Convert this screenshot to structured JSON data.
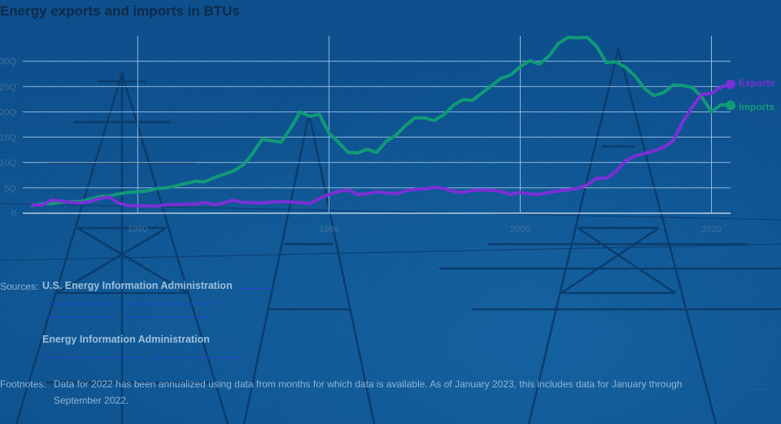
{
  "page": {
    "title": "Energy exports and imports in BTUs",
    "sources_label": "Sources:",
    "sources": [
      {
        "name": "U.S. Energy Information Administration"
      },
      {
        "name": "Energy Information Administration"
      }
    ],
    "footnotes_label": "Footnotes:",
    "footnote": "Data for 2022 has been annualized using data from months for which data is available. As of January 2023, this includes data for January through September 2022."
  },
  "colors": {
    "exports": "#7a30d6",
    "imports": "#109a78",
    "grid": "#9fc3e4",
    "background": "#0b4e8c"
  },
  "chart_data": {
    "type": "line",
    "title": "Energy exports and imports in BTUs",
    "xlim": [
      1949,
      2022
    ],
    "ylim": [
      0,
      35
    ],
    "y_ticks": [
      0,
      5,
      10,
      15,
      20,
      25,
      30
    ],
    "y_tick_labels": [
      "0",
      "5Q",
      "10Q",
      "15Q",
      "20Q",
      "25Q",
      "30Q"
    ],
    "x_ticks": [
      1960,
      1980,
      2000,
      2020
    ],
    "x_tick_labels": [
      "1960",
      "1980",
      "2000",
      "2020"
    ],
    "grid": true,
    "legend": "end-of-line labels",
    "x": [
      1949,
      1950,
      1951,
      1952,
      1953,
      1954,
      1955,
      1956,
      1957,
      1958,
      1959,
      1960,
      1961,
      1962,
      1963,
      1964,
      1965,
      1966,
      1967,
      1968,
      1969,
      1970,
      1971,
      1972,
      1973,
      1974,
      1975,
      1976,
      1977,
      1978,
      1979,
      1980,
      1981,
      1982,
      1983,
      1984,
      1985,
      1986,
      1987,
      1988,
      1989,
      1990,
      1991,
      1992,
      1993,
      1994,
      1995,
      1996,
      1997,
      1998,
      1999,
      2000,
      2001,
      2002,
      2003,
      2004,
      2005,
      2006,
      2007,
      2008,
      2009,
      2010,
      2011,
      2012,
      2013,
      2014,
      2015,
      2016,
      2017,
      2018,
      2019,
      2020,
      2021,
      2022
    ],
    "series": [
      {
        "name": "Exports",
        "values": [
          1.6,
          1.6,
          2.6,
          2.4,
          2.1,
          2.0,
          2.3,
          2.9,
          3.2,
          2.0,
          1.5,
          1.5,
          1.4,
          1.4,
          1.7,
          1.7,
          1.8,
          1.8,
          2.1,
          1.7,
          2.0,
          2.6,
          2.1,
          2.1,
          2.0,
          2.2,
          2.3,
          2.2,
          2.1,
          1.9,
          2.9,
          3.7,
          4.3,
          4.6,
          3.7,
          3.8,
          4.2,
          4.0,
          3.8,
          4.4,
          4.7,
          4.8,
          5.1,
          4.9,
          4.3,
          4.1,
          4.5,
          4.6,
          4.5,
          4.3,
          3.7,
          4.1,
          3.8,
          3.7,
          4.1,
          4.4,
          4.6,
          4.9,
          5.6,
          6.9,
          6.9,
          8.2,
          10.3,
          11.3,
          11.8,
          12.3,
          13.0,
          14.3,
          18.0,
          21.0,
          23.5,
          23.6,
          24.9,
          25.4
        ]
      },
      {
        "name": "Imports",
        "values": [
          1.5,
          1.9,
          1.9,
          2.1,
          2.3,
          2.3,
          2.8,
          3.3,
          3.4,
          3.8,
          4.1,
          4.2,
          4.4,
          4.9,
          5.0,
          5.4,
          5.9,
          6.3,
          6.2,
          7.0,
          7.7,
          8.3,
          9.5,
          11.7,
          14.6,
          14.3,
          14.0,
          16.8,
          20.0,
          19.1,
          19.5,
          15.8,
          14.0,
          12.0,
          11.9,
          12.6,
          12.0,
          14.2,
          15.4,
          17.3,
          18.8,
          18.8,
          18.3,
          19.4,
          21.3,
          22.4,
          22.3,
          23.7,
          25.2,
          26.6,
          27.3,
          28.9,
          30.1,
          29.4,
          31.0,
          33.5,
          34.7,
          34.6,
          34.7,
          32.9,
          29.7,
          29.9,
          28.8,
          27.1,
          24.6,
          23.2,
          23.8,
          25.3,
          25.2,
          24.8,
          22.9,
          20.0,
          21.4,
          21.3
        ]
      }
    ]
  }
}
